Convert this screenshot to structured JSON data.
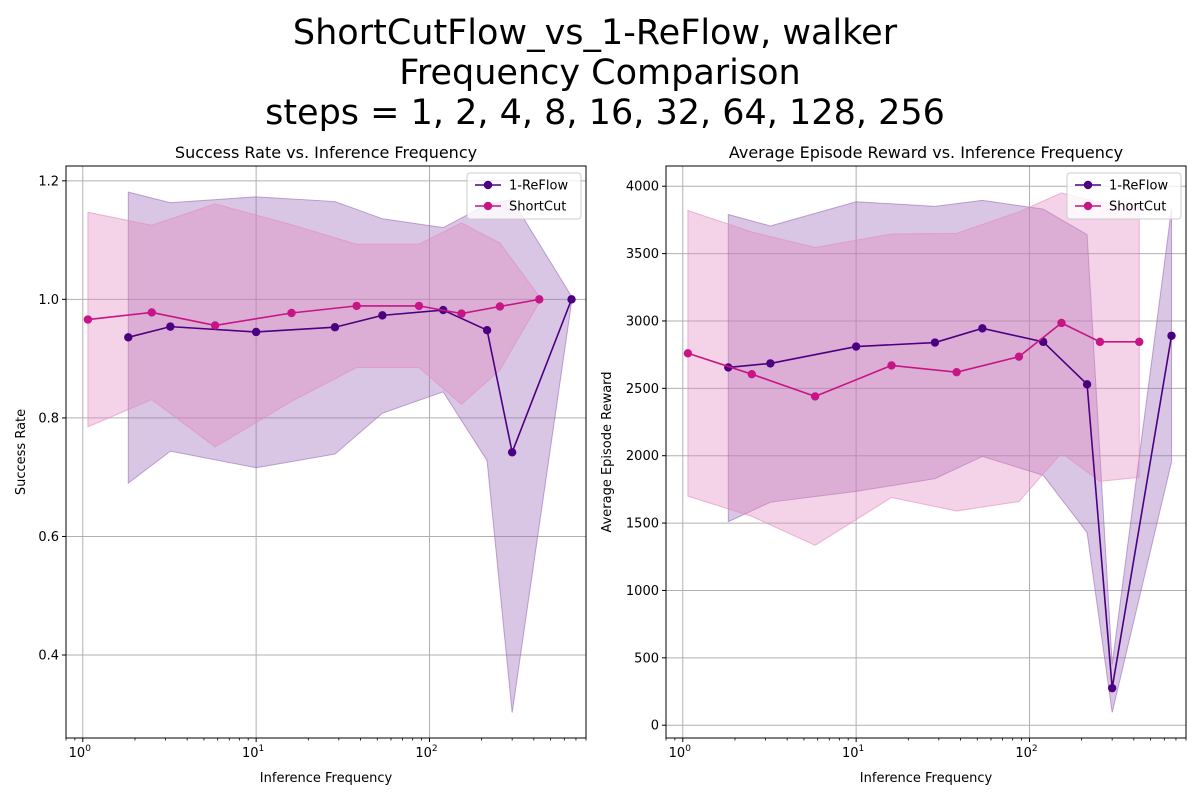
{
  "figure": {
    "title_lines": [
      "ShortCutFlow_vs_1-ReFlow, walker",
      "Frequency Comparison",
      "steps = 1, 2, 4, 8, 16, 32, 64, 128, 256"
    ]
  },
  "colors": {
    "reflow": "#4b0082",
    "shortcut": "#c71585",
    "reflow_band": "#9a6ab8",
    "shortcut_band": "#e38ac0",
    "grid": "#b0b0b0"
  },
  "chart_data": [
    {
      "type": "line",
      "title": "Success Rate vs. Inference Frequency",
      "xlabel": "Inference Frequency",
      "ylabel": "Success Rate",
      "xscale": "log",
      "xlim": [
        0.8,
        800
      ],
      "ylim": [
        0.26,
        1.225
      ],
      "yticks": [
        0.4,
        0.6,
        0.8,
        1.0,
        1.2
      ],
      "ytick_labels": [
        "0.4",
        "0.6",
        "0.8",
        "1.0",
        "1.2"
      ],
      "xticks": [
        1,
        10,
        100
      ],
      "xtick_labels": [
        [
          "10",
          "0"
        ],
        [
          "10",
          "1"
        ],
        [
          "10",
          "2"
        ]
      ],
      "grid": true,
      "legend_position": "top-right",
      "series": [
        {
          "name": "1-ReFlow",
          "x": [
            1.83,
            3.2,
            10,
            28.5,
            53.5,
            120,
            215,
            300,
            660
          ],
          "y": [
            0.936,
            0.954,
            0.945,
            0.953,
            0.973,
            0.982,
            0.948,
            0.742,
            1.0
          ],
          "upper": [
            1.181,
            1.163,
            1.173,
            1.165,
            1.136,
            1.121,
            1.16,
            1.168,
            1.005
          ],
          "lower": [
            0.69,
            0.744,
            0.716,
            0.739,
            0.808,
            0.844,
            0.728,
            0.303,
            0.995
          ]
        },
        {
          "name": "ShortCut",
          "x": [
            1.07,
            2.5,
            5.8,
            16,
            38,
            87,
            153,
            255,
            430
          ],
          "y": [
            0.966,
            0.978,
            0.956,
            0.977,
            0.989,
            0.989,
            0.976,
            0.988,
            1.0
          ],
          "upper": [
            1.147,
            1.125,
            1.161,
            1.126,
            1.093,
            1.093,
            1.129,
            1.095,
            1.005
          ],
          "lower": [
            0.785,
            0.831,
            0.751,
            0.828,
            0.885,
            0.885,
            0.823,
            0.881,
            0.995
          ]
        }
      ]
    },
    {
      "type": "line",
      "title": "Average Episode Reward vs. Inference Frequency",
      "xlabel": "Inference Frequency",
      "ylabel": "Average Episode Reward",
      "xscale": "log",
      "xlim": [
        0.8,
        800
      ],
      "ylim": [
        -95,
        4150
      ],
      "yticks": [
        0,
        500,
        1000,
        1500,
        2000,
        2500,
        3000,
        3500,
        4000
      ],
      "ytick_labels": [
        "0",
        "500",
        "1000",
        "1500",
        "2000",
        "2500",
        "3000",
        "3500",
        "4000"
      ],
      "xticks": [
        1,
        10,
        100
      ],
      "xtick_labels": [
        [
          "10",
          "0"
        ],
        [
          "10",
          "1"
        ],
        [
          "10",
          "2"
        ]
      ],
      "grid": true,
      "legend_position": "top-right",
      "series": [
        {
          "name": "1-ReFlow",
          "x": [
            1.83,
            3.2,
            10,
            28.5,
            53.5,
            120,
            215,
            300,
            660
          ],
          "y": [
            2655,
            2685,
            2810,
            2840,
            2945,
            2845,
            2530,
            275,
            2890
          ],
          "upper": [
            3790,
            3705,
            3885,
            3850,
            3895,
            3830,
            3640,
            450,
            3830
          ],
          "lower": [
            1510,
            1655,
            1735,
            1830,
            1995,
            1855,
            1430,
            95,
            1955
          ]
        },
        {
          "name": "ShortCut",
          "x": [
            1.07,
            2.5,
            5.8,
            16,
            38,
            87,
            153,
            255,
            430
          ],
          "y": [
            2760,
            2605,
            2440,
            2670,
            2620,
            2735,
            2985,
            2845,
            2845
          ],
          "upper": [
            3820,
            3660,
            3545,
            3645,
            3650,
            3810,
            3950,
            3880,
            3850
          ],
          "lower": [
            1700,
            1550,
            1335,
            1690,
            1590,
            1660,
            2020,
            1810,
            1840
          ]
        }
      ]
    }
  ]
}
